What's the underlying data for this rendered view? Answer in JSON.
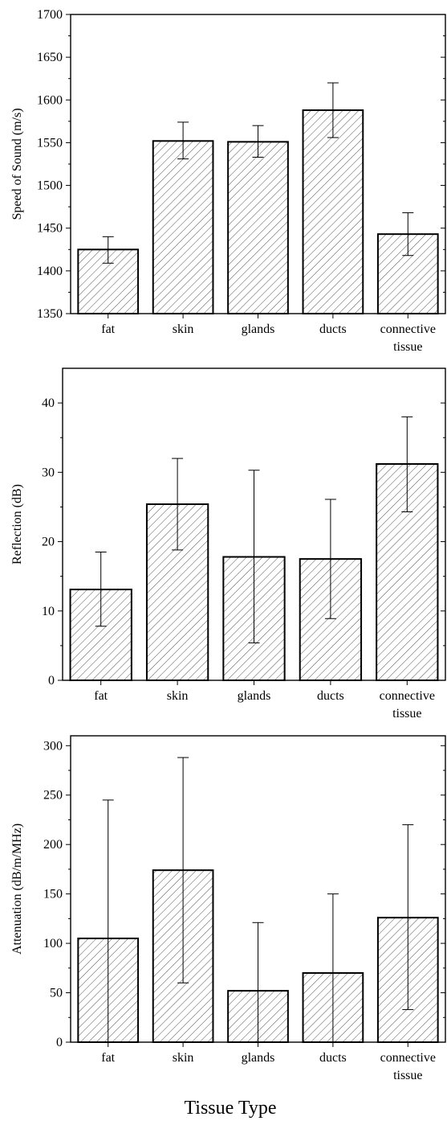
{
  "figure": {
    "xlabel": "Tissue Type"
  },
  "chart_data": [
    {
      "type": "bar",
      "categories": [
        [
          "fat"
        ],
        [
          "skin"
        ],
        [
          "glands"
        ],
        [
          "ducts"
        ],
        [
          "connective",
          "tissue"
        ]
      ],
      "values": [
        1425,
        1552,
        1551,
        1588,
        1443
      ],
      "errors_low": [
        1409,
        1531,
        1533,
        1556,
        1418
      ],
      "errors_high": [
        1440,
        1574,
        1570,
        1620,
        1468
      ],
      "ylabel": "Speed of Sound (m/s)",
      "ylim": [
        1350,
        1700
      ],
      "yticks": [
        1350,
        1400,
        1450,
        1500,
        1550,
        1600,
        1650,
        1700
      ],
      "minor_ticks": true,
      "pattern": "diagonal-hatch"
    },
    {
      "type": "bar",
      "categories": [
        [
          "fat"
        ],
        [
          "skin"
        ],
        [
          "glands"
        ],
        [
          "ducts"
        ],
        [
          "connective",
          "tissue"
        ]
      ],
      "values": [
        13.1,
        25.4,
        17.8,
        17.5,
        31.2
      ],
      "errors_low": [
        7.8,
        18.8,
        5.4,
        8.9,
        24.3
      ],
      "errors_high": [
        18.5,
        32.0,
        30.3,
        26.1,
        38.0
      ],
      "ylabel": "Reflection (dB)",
      "ylim": [
        0,
        45
      ],
      "yticks": [
        0,
        10,
        20,
        30,
        40
      ],
      "minor_ticks": true,
      "pattern": "diagonal-hatch"
    },
    {
      "type": "bar",
      "categories": [
        [
          "fat"
        ],
        [
          "skin"
        ],
        [
          "glands"
        ],
        [
          "ducts"
        ],
        [
          "connective",
          "tissue"
        ]
      ],
      "values": [
        105,
        174,
        52,
        70,
        126
      ],
      "errors_low": [
        0,
        60,
        0,
        0,
        33
      ],
      "errors_high": [
        245,
        288,
        121,
        150,
        220
      ],
      "ylabel": "Attenuation (dB/m/MHz)",
      "ylim": [
        0,
        310
      ],
      "yticks": [
        0,
        50,
        100,
        150,
        200,
        250,
        300
      ],
      "minor_ticks": true,
      "pattern": "diagonal-hatch"
    }
  ]
}
